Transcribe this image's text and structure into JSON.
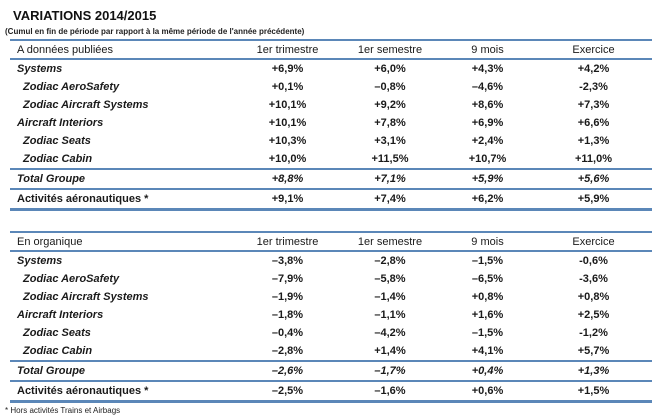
{
  "title": "VARIATIONS 2014/2015",
  "subtitle": "(Cumul en fin de période par rapport à la même période de l'année précédente)",
  "accent_color": "#5B87B8",
  "columns": [
    "1er trimestre",
    "1er semestre",
    "9 mois",
    "Exercice"
  ],
  "tables": [
    {
      "name": "A données publiées",
      "rows": [
        {
          "label": "Systems",
          "style": "seg",
          "values": [
            "+6,9%",
            "+6,0%",
            "+4,3%",
            "+4,2%"
          ]
        },
        {
          "label": "Zodiac AeroSafety",
          "style": "sub",
          "values": [
            "+0,1%",
            "–0,8%",
            "–4,6%",
            "-2,3%"
          ]
        },
        {
          "label": "Zodiac Aircraft Systems",
          "style": "sub",
          "values": [
            "+10,1%",
            "+9,2%",
            "+8,6%",
            "+7,3%"
          ]
        },
        {
          "label": "Aircraft Interiors",
          "style": "seg",
          "values": [
            "+10,1%",
            "+7,8%",
            "+6,9%",
            "+6,6%"
          ]
        },
        {
          "label": "Zodiac Seats",
          "style": "sub",
          "values": [
            "+10,3%",
            "+3,1%",
            "+2,4%",
            "+1,3%"
          ]
        },
        {
          "label": "Zodiac Cabin",
          "style": "sub",
          "values": [
            "+10,0%",
            "+11,5%",
            "+10,7%",
            "+11,0%"
          ]
        },
        {
          "label": "Total Groupe",
          "style": "total",
          "values": [
            "+8,8%",
            "+7,1%",
            "+5,9%",
            "+5,6%"
          ]
        },
        {
          "label": "Activités aéronautiques *",
          "style": "grand",
          "values": [
            "+9,1%",
            "+7,4%",
            "+6,2%",
            "+5,9%"
          ]
        }
      ]
    },
    {
      "name": "En organique",
      "rows": [
        {
          "label": "Systems",
          "style": "seg",
          "values": [
            "–3,8%",
            "–2,8%",
            "–1,5%",
            "-0,6%"
          ]
        },
        {
          "label": "Zodiac AeroSafety",
          "style": "sub",
          "values": [
            "–7,9%",
            "–5,8%",
            "–6,5%",
            "-3,6%"
          ]
        },
        {
          "label": "Zodiac Aircraft Systems",
          "style": "sub",
          "values": [
            "–1,9%",
            "–1,4%",
            "+0,8%",
            "+0,8%"
          ]
        },
        {
          "label": "Aircraft Interiors",
          "style": "seg",
          "values": [
            "–1,8%",
            "–1,1%",
            "+1,6%",
            "+2,5%"
          ]
        },
        {
          "label": "Zodiac Seats",
          "style": "sub",
          "values": [
            "–0,4%",
            "–4,2%",
            "–1,5%",
            "-1,2%"
          ]
        },
        {
          "label": "Zodiac Cabin",
          "style": "sub",
          "values": [
            "–2,8%",
            "+1,4%",
            "+4,1%",
            "+5,7%"
          ]
        },
        {
          "label": "Total Groupe",
          "style": "total",
          "values": [
            "–2,6%",
            "–1,7%",
            "+0,4%",
            "+1,3%"
          ]
        },
        {
          "label": "Activités aéronautiques *",
          "style": "grand",
          "values": [
            "–2,5%",
            "–1,6%",
            "+0,6%",
            "+1,5%"
          ]
        }
      ]
    }
  ],
  "footnote": "* Hors activités Trains et Airbags"
}
